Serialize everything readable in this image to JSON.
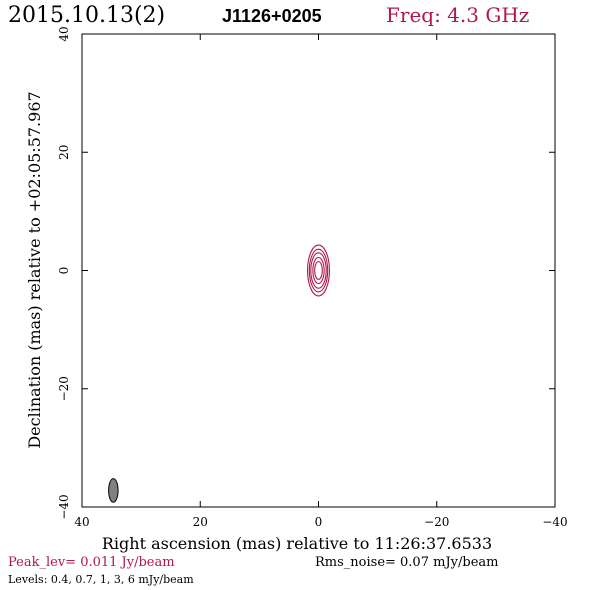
{
  "header": {
    "date": "2015.10.13(2)",
    "source": "J1126+0205",
    "freq": "Freq: 4.3 GHz"
  },
  "footer": {
    "peak": "Peak_lev=  0.011 Jy/beam",
    "rms": "Rms_noise= 0.07 mJy/beam",
    "levels": "Levels: 0.4,  0.7,    1,    3,    6 mJy/beam"
  },
  "colors": {
    "accent": "#b0184a",
    "axis": "#000000",
    "beam_fill": "#808080"
  },
  "chart_data": {
    "type": "contour",
    "title": "J1126+0205",
    "xlabel": "Right ascension (mas) relative to 11:26:37.6533",
    "ylabel": "Declination (mas) relative to +02:05:57.967",
    "xlim": [
      40,
      -40
    ],
    "ylim": [
      -40,
      40
    ],
    "x_ticks": [
      40,
      20,
      0,
      -20,
      -40
    ],
    "y_ticks": [
      -40,
      -20,
      0,
      20,
      40
    ],
    "x_tick_labels": [
      "40",
      "20",
      "0",
      "−20",
      "−40"
    ],
    "y_tick_labels": [
      "−40",
      "−20",
      "0",
      "20",
      "40"
    ],
    "contour_levels_mJy": [
      0.4,
      0.7,
      1,
      3,
      6
    ],
    "peak_Jy_per_beam": 0.011,
    "rms_noise_mJy_per_beam": 0.07,
    "source_center": {
      "x": 0,
      "y": 0
    },
    "contours": [
      {
        "level": 0.4,
        "semi_major_mas": 4.3,
        "semi_minor_mas": 1.85
      },
      {
        "level": 0.7,
        "semi_major_mas": 3.6,
        "semi_minor_mas": 1.55
      },
      {
        "level": 1,
        "semi_major_mas": 3.0,
        "semi_minor_mas": 1.3
      },
      {
        "level": 3,
        "semi_major_mas": 2.2,
        "semi_minor_mas": 0.95
      },
      {
        "level": 6,
        "semi_major_mas": 1.5,
        "semi_minor_mas": 0.65
      }
    ],
    "beam": {
      "center_x": 34.7,
      "center_y": -37.2,
      "semi_major_mas": 2.0,
      "semi_minor_mas": 0.8
    }
  }
}
